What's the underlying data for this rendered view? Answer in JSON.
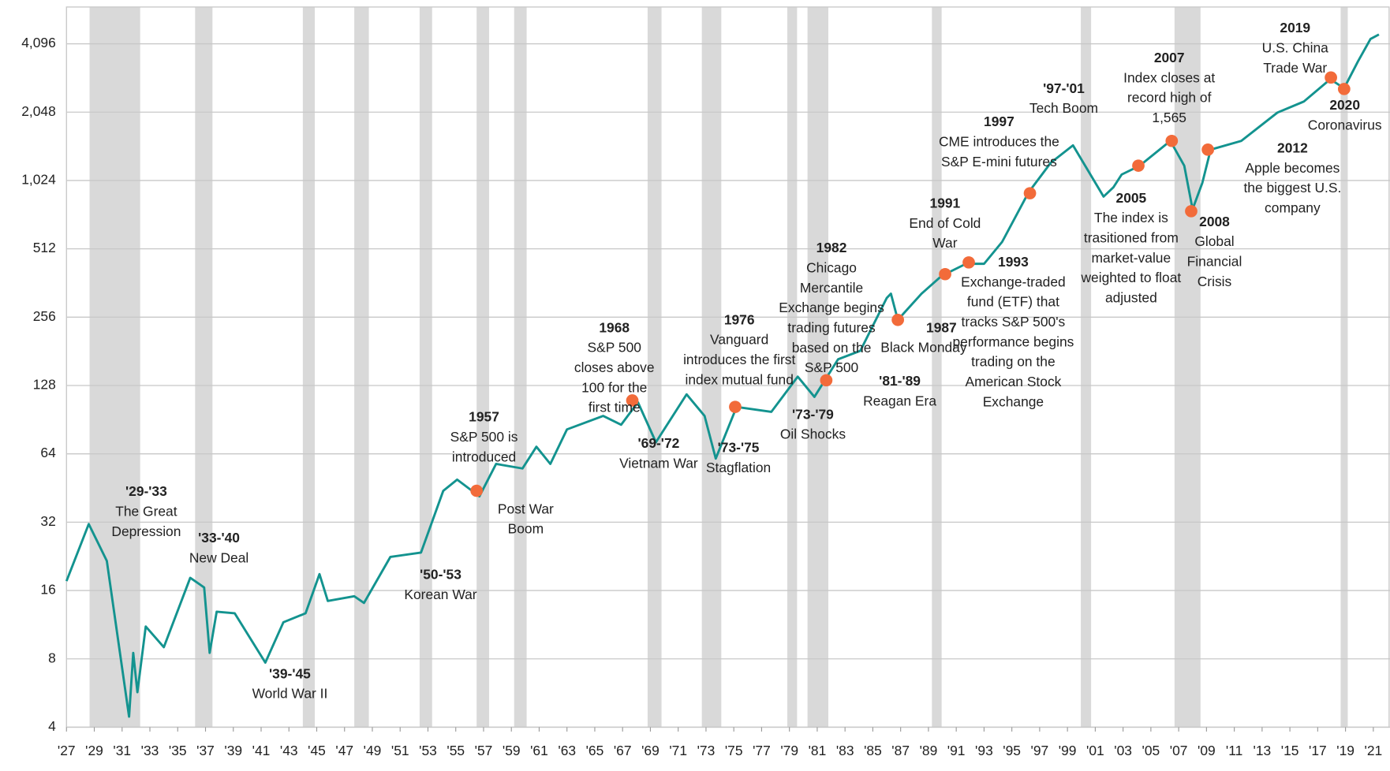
{
  "chart_data": {
    "type": "line",
    "log_scale": "y",
    "grid": true,
    "color": "#13938f",
    "xlim": [
      1927,
      2022.2
    ],
    "ylim": [
      4,
      5950
    ],
    "yticks": [
      4,
      8,
      16,
      32,
      64,
      128,
      256,
      512,
      {
        "value": 1024,
        "label": "1,024"
      },
      {
        "value": 2048,
        "label": "2,048"
      },
      {
        "value": 4096,
        "label": "4,096"
      }
    ],
    "xticks": [
      {
        "value": 1927,
        "label": "'27"
      },
      {
        "value": 1929,
        "label": "'29"
      },
      {
        "value": 1931,
        "label": "'31"
      },
      {
        "value": 1933,
        "label": "'33"
      },
      {
        "value": 1935,
        "label": "'35"
      },
      {
        "value": 1937,
        "label": "'37"
      },
      {
        "value": 1939,
        "label": "'39"
      },
      {
        "value": 1941,
        "label": "'41"
      },
      {
        "value": 1943,
        "label": "'43"
      },
      {
        "value": 1945,
        "label": "'45"
      },
      {
        "value": 1947,
        "label": "'47"
      },
      {
        "value": 1949,
        "label": "'49"
      },
      {
        "value": 1951,
        "label": "'51"
      },
      {
        "value": 1953,
        "label": "'53"
      },
      {
        "value": 1955,
        "label": "'55"
      },
      {
        "value": 1957,
        "label": "'57"
      },
      {
        "value": 1959,
        "label": "'59"
      },
      {
        "value": 1961,
        "label": "'61"
      },
      {
        "value": 1963,
        "label": "'63"
      },
      {
        "value": 1965,
        "label": "'65"
      },
      {
        "value": 1967,
        "label": "'67"
      },
      {
        "value": 1969,
        "label": "'69"
      },
      {
        "value": 1971,
        "label": "'71"
      },
      {
        "value": 1973,
        "label": "'73"
      },
      {
        "value": 1975,
        "label": "'75"
      },
      {
        "value": 1977,
        "label": "'77"
      },
      {
        "value": 1979,
        "label": "'79"
      },
      {
        "value": 1981,
        "label": "'81"
      },
      {
        "value": 1983,
        "label": "'83"
      },
      {
        "value": 1985,
        "label": "'85"
      },
      {
        "value": 1987,
        "label": "'87"
      },
      {
        "value": 1989,
        "label": "'89"
      },
      {
        "value": 1991,
        "label": "'91"
      },
      {
        "value": 1993,
        "label": "'93"
      },
      {
        "value": 1995,
        "label": "'95"
      },
      {
        "value": 1997,
        "label": "'97"
      },
      {
        "value": 1999,
        "label": "'99"
      },
      {
        "value": 2001,
        "label": "'01"
      },
      {
        "value": 2003,
        "label": "'03"
      },
      {
        "value": 2005,
        "label": "'05"
      },
      {
        "value": 2007,
        "label": "'07"
      },
      {
        "value": 2009,
        "label": "'09"
      },
      {
        "value": 2011,
        "label": "'11"
      },
      {
        "value": 2013,
        "label": "'13"
      },
      {
        "value": 2015,
        "label": "'15"
      },
      {
        "value": 2017,
        "label": "'17"
      },
      {
        "value": 2019,
        "label": "'19"
      },
      {
        "value": 2021,
        "label": "'21"
      }
    ],
    "shaded_periods": [
      [
        1928.66,
        1932.3
      ],
      [
        1936.25,
        1937.5
      ],
      [
        1944.0,
        1944.86
      ],
      [
        1947.7,
        1948.75
      ],
      [
        1952.4,
        1953.3
      ],
      [
        1956.5,
        1957.4
      ],
      [
        1959.2,
        1960.1
      ],
      [
        1968.8,
        1969.8
      ],
      [
        1972.7,
        1974.1
      ],
      [
        1978.85,
        1979.55
      ],
      [
        1980.3,
        1981.8
      ],
      [
        1989.25,
        1989.95
      ],
      [
        1999.96,
        2000.7
      ],
      [
        2006.7,
        2008.57
      ],
      [
        2018.65,
        2019.16
      ]
    ],
    "x": [
      1927,
      1928.6,
      1929.9,
      1931.5,
      1931.8,
      1932.1,
      1932.7,
      1934,
      1935.9,
      1936.9,
      1937.3,
      1937.8,
      1939.1,
      1941.3,
      1942.6,
      1944.2,
      1945.2,
      1945.8,
      1947.7,
      1948.4,
      1950.3,
      1952.5,
      1954.1,
      1955.1,
      1956.7,
      1957.9,
      1959.8,
      1960.8,
      1961.8,
      1963,
      1965.6,
      1966.9,
      1968.1,
      1969.4,
      1971.6,
      1972.9,
      1973.7,
      1975.2,
      1977.7,
      1979.6,
      1980.8,
      1982.5,
      1984.1,
      1986,
      1986.3,
      1986.8,
      1988.5,
      1989.95,
      1991.7,
      1993,
      1994.3,
      1996.2,
      1997.8,
      1999.4,
      2001.6,
      2002.3,
      2002.9,
      2004.2,
      2006.4,
      2007.4,
      2008,
      2008.7,
      2009.3,
      2011.5,
      2014.1,
      2016,
      2017.9,
      2018.9,
      2019.9,
      2020.8,
      2021.4
    ],
    "values": [
      17.6,
      31.4,
      21.6,
      4.45,
      8.5,
      5.7,
      11.1,
      9.0,
      18.2,
      16.5,
      8.5,
      12.9,
      12.7,
      7.7,
      11.6,
      12.7,
      18.9,
      14.4,
      15.1,
      14.1,
      22.5,
      23.5,
      44,
      49.3,
      41.6,
      57.8,
      55.2,
      68.8,
      57.8,
      82,
      94,
      86,
      108,
      72,
      117,
      94,
      61,
      103,
      98,
      140,
      114,
      167,
      182,
      311,
      325,
      249,
      325,
      389,
      440,
      440,
      550,
      907,
      1226,
      1462,
      870,
      955,
      1088,
      1190,
      1530,
      1190,
      765,
      1000,
      1400,
      1530,
      2040,
      2280,
      2860,
      2610,
      3430,
      4300,
      4500
    ],
    "events": {
      "color": "#f26b3a",
      "x": [
        1956.5,
        1967.7,
        1975.1,
        1981.65,
        1986.8,
        1990.2,
        1991.9,
        1996.3,
        2004.1,
        2006.5,
        2007.9,
        2009.1,
        2017.95,
        2018.9
      ],
      "values": [
        44,
        110,
        103,
        135,
        249,
        396,
        446,
        900,
        1190,
        1530,
        750,
        1400,
        2910,
        2590
      ]
    },
    "annotations": [
      {
        "heading": "'29-'33",
        "lines": [
          "The Great",
          "Depression"
        ]
      },
      {
        "heading": "'33-'40",
        "lines": [
          "New Deal"
        ]
      },
      {
        "heading": "'39-'45",
        "lines": [
          "World War II"
        ]
      },
      {
        "heading": "'50-'53",
        "lines": [
          "Korean War"
        ]
      },
      {
        "heading": "1957",
        "lines": [
          "S&P 500 is",
          "introduced"
        ]
      },
      {
        "lines": [
          "Post War",
          "Boom"
        ]
      },
      {
        "heading": "1968",
        "lines": [
          "S&P 500",
          "closes above",
          "100 for the",
          "first time"
        ]
      },
      {
        "heading": "'69-'72",
        "lines": [
          "Vietnam War"
        ]
      },
      {
        "heading": "'73-'75",
        "lines": [
          "Stagflation"
        ]
      },
      {
        "heading": "1976",
        "lines": [
          "Vanguard",
          "introduces the first",
          "index mutual fund"
        ]
      },
      {
        "heading": "'73-'79",
        "lines": [
          "Oil Shocks"
        ]
      },
      {
        "heading": "1982",
        "lines": [
          "Chicago",
          "Mercantile",
          "Exchange begins",
          "trading futures",
          "based on the",
          "S&P 500"
        ]
      },
      {
        "heading": "'81-'89",
        "lines": [
          "Reagan Era"
        ]
      },
      {
        "heading": "1987",
        "lines": [
          "Black Monday"
        ]
      },
      {
        "heading": "1991",
        "lines": [
          "End of Cold",
          "War"
        ]
      },
      {
        "heading": "1993",
        "lines": [
          "Exchange-traded",
          "fund  (ETF) that",
          "tracks S&P 500's",
          "performance begins",
          "trading on the",
          "American Stock",
          "Exchange"
        ]
      },
      {
        "heading": "1997",
        "lines": [
          "CME introduces the",
          "S&P E-mini futures"
        ]
      },
      {
        "heading": "'97-'01",
        "lines": [
          "Tech Boom"
        ]
      },
      {
        "heading": "2005",
        "lines": [
          "The index is",
          "trasitioned from",
          "market-value",
          "weighted to float",
          "adjusted"
        ]
      },
      {
        "heading": "2007",
        "lines": [
          "Index closes at",
          "record high of",
          "1,565"
        ]
      },
      {
        "heading": "2008",
        "lines": [
          "Global",
          "Financial",
          "Crisis"
        ]
      },
      {
        "heading": "2012",
        "lines": [
          "Apple becomes",
          "the biggest U.S.",
          "company"
        ]
      },
      {
        "heading": "2019",
        "lines": [
          "U.S. China",
          "Trade War"
        ]
      },
      {
        "heading": "2020",
        "lines": [
          "Coronavirus"
        ]
      }
    ]
  }
}
